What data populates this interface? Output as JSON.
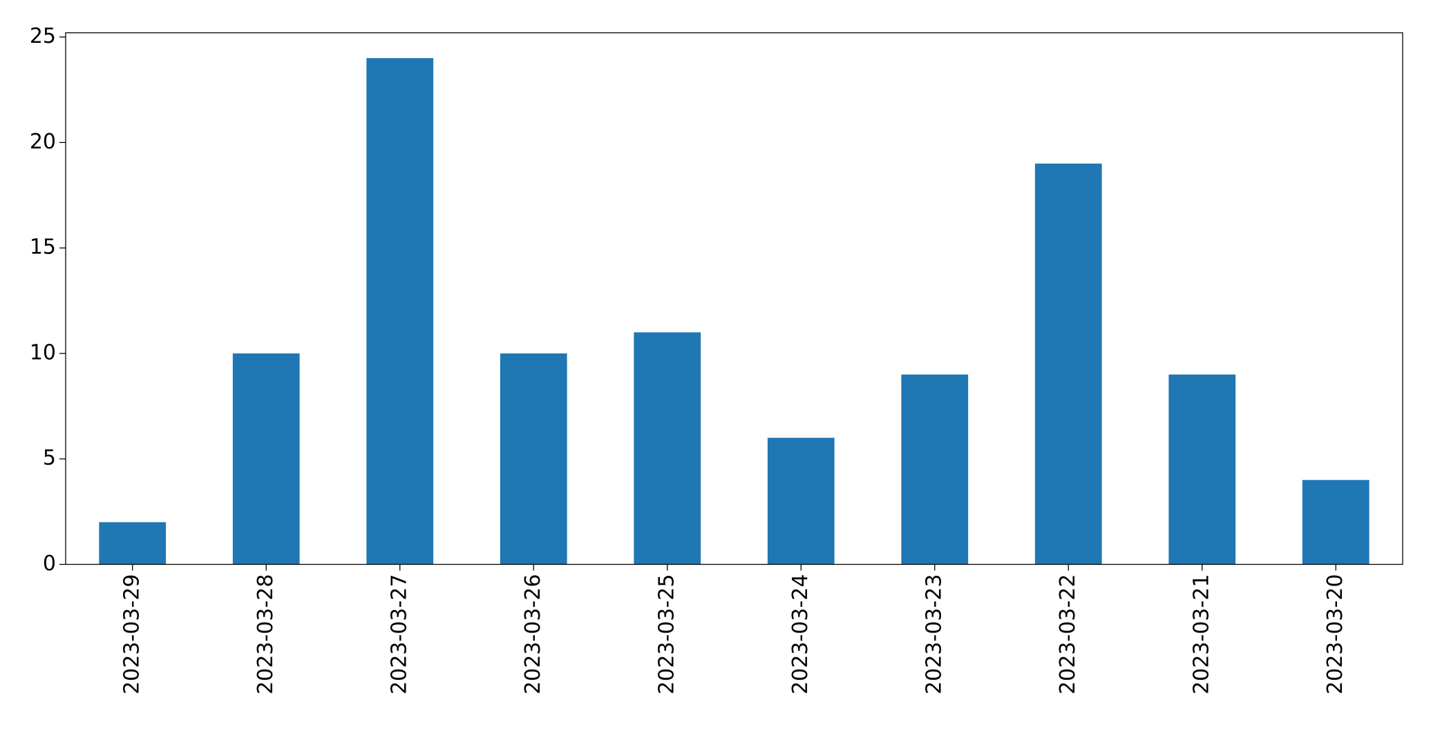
{
  "chart_data": {
    "type": "bar",
    "categories": [
      "2023-03-29",
      "2023-03-28",
      "2023-03-27",
      "2023-03-26",
      "2023-03-25",
      "2023-03-24",
      "2023-03-23",
      "2023-03-22",
      "2023-03-21",
      "2023-03-20"
    ],
    "values": [
      2,
      10,
      24,
      10,
      11,
      6,
      9,
      19,
      9,
      4
    ],
    "color": "#1f77b4",
    "ylim": [
      0,
      25.2
    ],
    "yticks": [
      0,
      5,
      10,
      15,
      20,
      25
    ],
    "grid": false
  }
}
